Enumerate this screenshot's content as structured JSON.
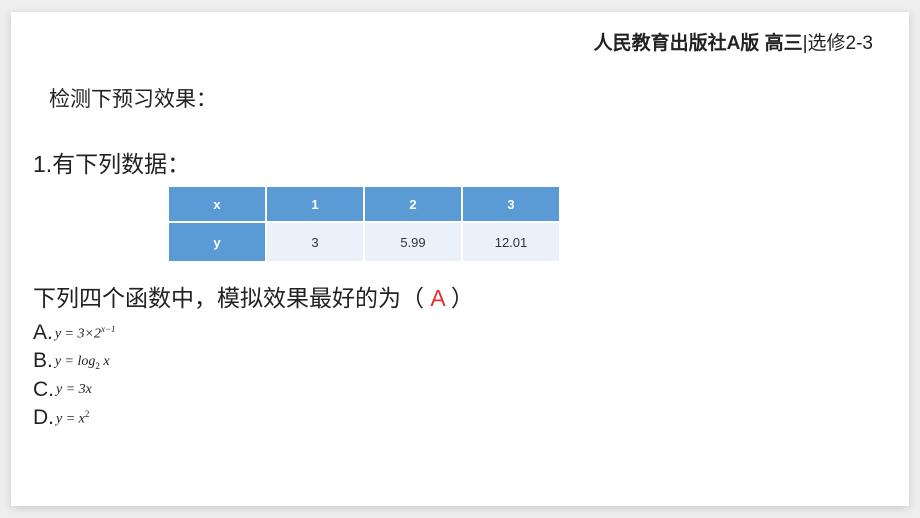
{
  "header": {
    "bold": "人民教育出版社A版 高三",
    "normal": "|选修2-3"
  },
  "subtitle": "检测下预习效果：",
  "question": "1.有下列数据：",
  "table": {
    "header_label": "x",
    "value_label": "y",
    "x": [
      "1",
      "2",
      "3"
    ],
    "y": [
      "3",
      "5.99",
      "12.01"
    ],
    "head_bg": "#5b9bd5",
    "head_fg": "#ffffff",
    "val_bg": "#eaf1f8",
    "val_fg": "#333333"
  },
  "prompt_pre": "下列四个函数中，模拟效果最好的为（",
  "answer": " A ",
  "answer_color": "#e03030",
  "prompt_post": "）",
  "options": {
    "A": {
      "label": "A.",
      "html": "y = 3×2<sup>x−1</sup>"
    },
    "B": {
      "label": "B.",
      "html": "y = log<sub>2</sub> x"
    },
    "C": {
      "label": "C.",
      "html": "y = 3x"
    },
    "D": {
      "label": "D.",
      "html": "y = x<sup><span class='rm'>2</span></sup>"
    }
  }
}
